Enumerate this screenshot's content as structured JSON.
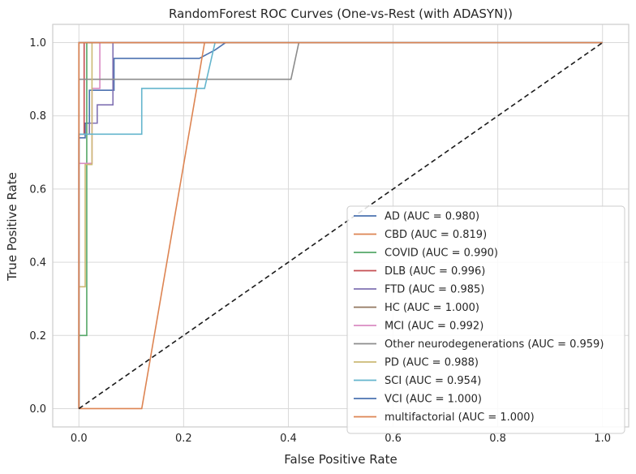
{
  "chart_data": {
    "type": "line",
    "title": "RandomForest ROC Curves (One-vs-Rest (with ADASYN))",
    "xlabel": "False Positive Rate",
    "ylabel": "True Positive Rate",
    "xlim": [
      -0.05,
      1.05
    ],
    "ylim": [
      -0.05,
      1.05
    ],
    "xticks": [
      "0.0",
      "0.2",
      "0.4",
      "0.6",
      "0.8",
      "1.0"
    ],
    "yticks": [
      "0.0",
      "0.2",
      "0.4",
      "0.6",
      "0.8",
      "1.0"
    ],
    "grid": true,
    "legend_position": "lower-right",
    "series": [
      {
        "name": "AD (AUC = 0.980)",
        "color": "#4c72b0",
        "points": [
          [
            0,
            0
          ],
          [
            0,
            0.74
          ],
          [
            0.012,
            0.74
          ],
          [
            0.012,
            0.78
          ],
          [
            0.02,
            0.78
          ],
          [
            0.02,
            0.87
          ],
          [
            0.03,
            0.87
          ],
          [
            0.03,
            0.87
          ],
          [
            0.067,
            0.87
          ],
          [
            0.067,
            0.957
          ],
          [
            0.23,
            0.957
          ],
          [
            0.26,
            0.98
          ],
          [
            0.28,
            1.0
          ],
          [
            1,
            1
          ]
        ]
      },
      {
        "name": "CBD (AUC = 0.819)",
        "color": "#dd8452",
        "points": [
          [
            0,
            0
          ],
          [
            0.12,
            0
          ],
          [
            0.24,
            1.0
          ],
          [
            1,
            1
          ]
        ]
      },
      {
        "name": "COVID (AUC = 0.990)",
        "color": "#55a868",
        "points": [
          [
            0,
            0
          ],
          [
            0,
            0.2
          ],
          [
            0.015,
            0.2
          ],
          [
            0.015,
            1.0
          ],
          [
            1,
            1
          ]
        ]
      },
      {
        "name": "DLB (AUC = 0.996)",
        "color": "#c44e52",
        "points": [
          [
            0,
            0
          ],
          [
            0,
            0.75
          ],
          [
            0.01,
            0.75
          ],
          [
            0.01,
            1.0
          ],
          [
            1,
            1
          ]
        ]
      },
      {
        "name": "FTD (AUC = 0.985)",
        "color": "#8172b3",
        "points": [
          [
            0,
            0
          ],
          [
            0,
            0.75
          ],
          [
            0.02,
            0.75
          ],
          [
            0.02,
            0.78
          ],
          [
            0.035,
            0.78
          ],
          [
            0.035,
            0.83
          ],
          [
            0.065,
            0.83
          ],
          [
            0.065,
            1.0
          ],
          [
            1,
            1
          ]
        ]
      },
      {
        "name": "HC (AUC = 1.000)",
        "color": "#937860",
        "points": [
          [
            0,
            0
          ],
          [
            0,
            1.0
          ],
          [
            1,
            1
          ]
        ]
      },
      {
        "name": "MCI (AUC = 0.992)",
        "color": "#da8bc3",
        "points": [
          [
            0,
            0
          ],
          [
            0,
            0.67
          ],
          [
            0.025,
            0.67
          ],
          [
            0.025,
            0.875
          ],
          [
            0.04,
            0.875
          ],
          [
            0.04,
            1.0
          ],
          [
            1,
            1
          ]
        ]
      },
      {
        "name": "Other neurodegenerations (AUC = 0.959)",
        "color": "#8c8c8c",
        "points": [
          [
            0,
            0
          ],
          [
            0,
            0.9
          ],
          [
            0.405,
            0.9
          ],
          [
            0.42,
            1.0
          ],
          [
            1,
            1
          ]
        ]
      },
      {
        "name": "PD (AUC = 0.988)",
        "color": "#ccb974",
        "points": [
          [
            0,
            0
          ],
          [
            0,
            0.333
          ],
          [
            0.012,
            0.333
          ],
          [
            0.012,
            0.667
          ],
          [
            0.025,
            0.667
          ],
          [
            0.025,
            1.0
          ],
          [
            1,
            1
          ]
        ]
      },
      {
        "name": "SCI (AUC = 0.954)",
        "color": "#64b5cd",
        "points": [
          [
            0,
            0
          ],
          [
            0,
            0.75
          ],
          [
            0.12,
            0.75
          ],
          [
            0.12,
            0.875
          ],
          [
            0.24,
            0.875
          ],
          [
            0.26,
            1.0
          ],
          [
            1,
            1
          ]
        ]
      },
      {
        "name": "VCI (AUC = 1.000)",
        "color": "#4c72b0",
        "points": [
          [
            0,
            0
          ],
          [
            0,
            1.0
          ],
          [
            1,
            1
          ]
        ]
      },
      {
        "name": "multifactorial (AUC = 1.000)",
        "color": "#dd8452",
        "points": [
          [
            0,
            0
          ],
          [
            0,
            1.0
          ],
          [
            1,
            1
          ]
        ]
      }
    ],
    "diagonal": {
      "color": "#1a1a1a",
      "points": [
        [
          0,
          0
        ],
        [
          1,
          1
        ]
      ]
    }
  }
}
